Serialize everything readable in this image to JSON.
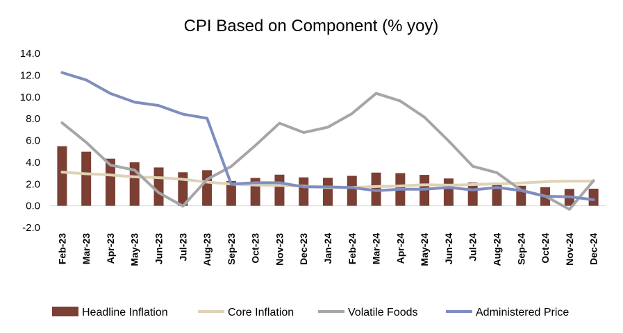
{
  "chart_data": {
    "type": "bar",
    "title": "CPI Based on Component (% yoy)",
    "categories": [
      "Feb-23",
      "Mar-23",
      "Apr-23",
      "May-23",
      "Jun-23",
      "Jul-23",
      "Aug-23",
      "Sep-23",
      "Oct-23",
      "Nov-23",
      "Dec-23",
      "Jan-24",
      "Feb-24",
      "Mar-24",
      "Apr-24",
      "May-24",
      "Jun-24",
      "Jul-24",
      "Aug-24",
      "Sep-24",
      "Oct-24",
      "Nov-24",
      "Dec-24"
    ],
    "ylim": [
      -2.0,
      14.0
    ],
    "yticks": [
      "14.0",
      "12.0",
      "10.0",
      "8.0",
      "6.0",
      "4.0",
      "2.0",
      "0.0",
      "-2.0"
    ],
    "legend_position": "bottom",
    "series": [
      {
        "name": "Headline Inflation",
        "type": "bar",
        "color": "#7B3F34",
        "values": [
          5.47,
          4.97,
          4.33,
          4.0,
          3.52,
          3.08,
          3.27,
          2.28,
          2.56,
          2.86,
          2.61,
          2.57,
          2.75,
          3.05,
          3.0,
          2.84,
          2.51,
          2.13,
          2.12,
          1.84,
          1.71,
          1.55,
          1.57
        ]
      },
      {
        "name": "Core Inflation",
        "type": "line",
        "color": "#DDD3B5",
        "values": [
          3.09,
          2.94,
          2.83,
          2.66,
          2.58,
          2.43,
          2.18,
          2.0,
          1.91,
          1.87,
          1.8,
          1.68,
          1.68,
          1.77,
          1.82,
          1.93,
          1.9,
          1.95,
          2.02,
          2.09,
          2.21,
          2.26,
          2.26
        ]
      },
      {
        "name": "Volatile Foods",
        "type": "line",
        "color": "#A6A6A6",
        "values": [
          7.62,
          5.83,
          3.74,
          3.28,
          1.2,
          -0.03,
          2.42,
          3.62,
          5.54,
          7.59,
          6.73,
          7.22,
          8.47,
          10.33,
          9.63,
          8.14,
          5.96,
          3.63,
          3.04,
          1.43,
          0.89,
          -0.33,
          2.31
        ]
      },
      {
        "name": "Administered Price",
        "type": "line",
        "color": "#7F8DBF",
        "values": [
          12.24,
          11.56,
          10.32,
          9.52,
          9.21,
          8.42,
          8.04,
          1.99,
          2.12,
          2.12,
          1.74,
          1.74,
          1.67,
          1.39,
          1.52,
          1.52,
          1.68,
          1.46,
          1.68,
          1.4,
          0.87,
          0.83,
          0.56
        ]
      }
    ]
  }
}
